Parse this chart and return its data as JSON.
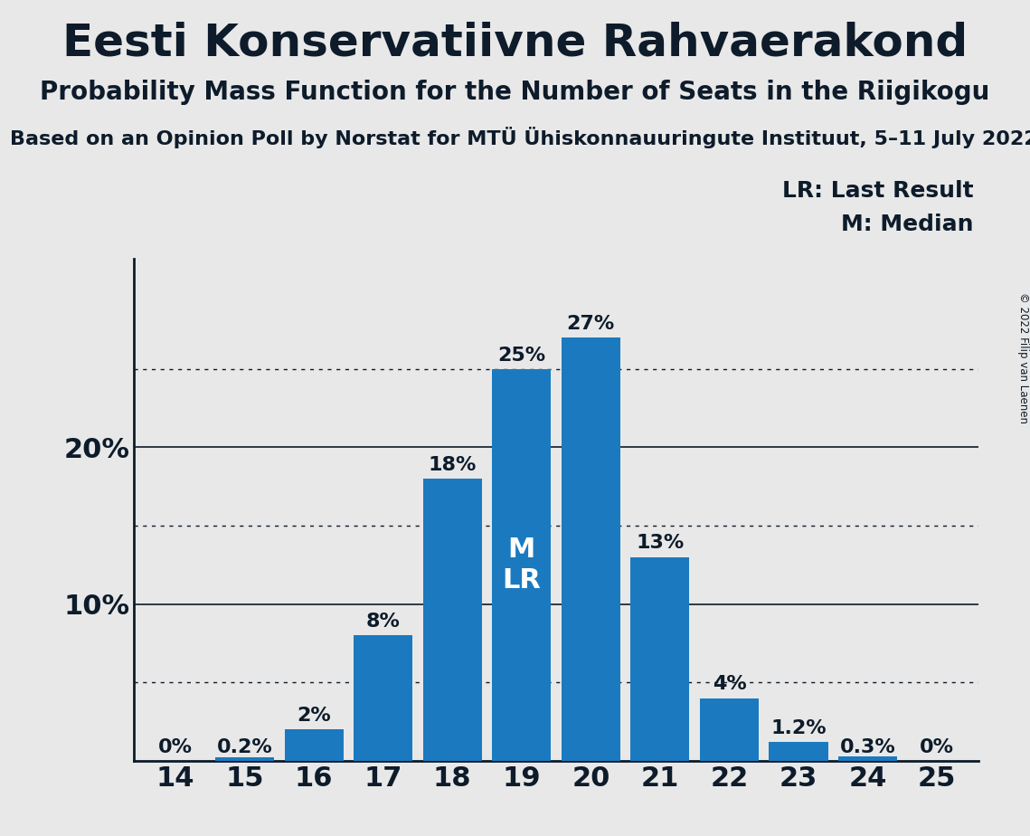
{
  "title": "Eesti Konservatiivne Rahvaerakond",
  "subtitle": "Probability Mass Function for the Number of Seats in the Riigikogu",
  "source_line": "Based on an Opinion Poll by Norstat for MTÜ Ühiskonnauuringute Instituut, 5–11 July 2022",
  "copyright": "© 2022 Filip van Laenen",
  "categories": [
    14,
    15,
    16,
    17,
    18,
    19,
    20,
    21,
    22,
    23,
    24,
    25
  ],
  "values": [
    0.0,
    0.2,
    2.0,
    8.0,
    18.0,
    25.0,
    27.0,
    13.0,
    4.0,
    1.2,
    0.3,
    0.0
  ],
  "bar_color": "#1b7abf",
  "background_color": "#e8e8e8",
  "text_color": "#0d1b2a",
  "bar_labels": [
    "0%",
    "0.2%",
    "2%",
    "8%",
    "18%",
    "25%",
    "27%",
    "13%",
    "4%",
    "1.2%",
    "0.3%",
    "0%"
  ],
  "median_bar": 19,
  "lr_bar": 19,
  "dotted_lines": [
    5,
    15,
    25
  ],
  "solid_lines": [
    10,
    20
  ],
  "ylim": [
    0,
    32
  ],
  "legend_lr": "LR: Last Result",
  "legend_m": "M: Median",
  "title_fontsize": 36,
  "subtitle_fontsize": 20,
  "source_fontsize": 16,
  "tick_fontsize": 22,
  "label_fontsize": 16
}
